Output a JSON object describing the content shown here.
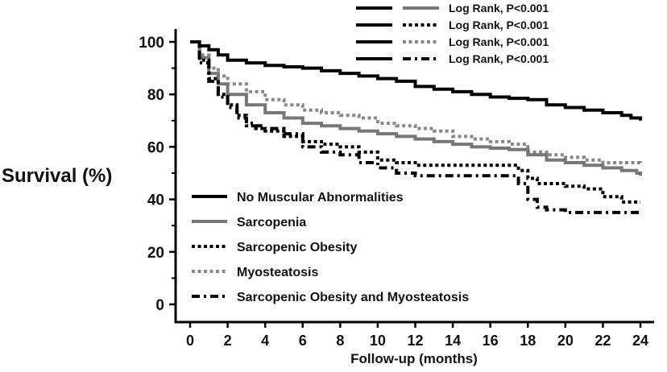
{
  "chart_data": {
    "type": "line",
    "subtype": "kaplan-meier",
    "title": "",
    "xlabel": "Follow-up (months)",
    "ylabel": "Survival (%)",
    "xlim": [
      0,
      24
    ],
    "ylim": [
      0,
      100
    ],
    "xticks": [
      0,
      2,
      4,
      6,
      8,
      10,
      12,
      14,
      16,
      18,
      20,
      22,
      24
    ],
    "yticks": [
      0,
      20,
      40,
      60,
      80,
      100
    ],
    "grid": false,
    "legend_position": "bottom-left",
    "series": [
      {
        "name": "No Muscular Abnormalities",
        "color": "#000000",
        "style": "solid",
        "x": [
          0,
          0.5,
          1,
          1.5,
          2,
          3,
          4,
          5,
          6,
          7,
          8,
          9,
          10,
          11,
          12,
          13,
          14,
          15,
          16,
          17,
          18,
          19,
          20,
          21,
          22,
          23,
          23.5,
          24
        ],
        "y": [
          100,
          98.5,
          97,
          95,
          93,
          92,
          91,
          90.5,
          90,
          89,
          88,
          87,
          86,
          85,
          83,
          82,
          81,
          80,
          79,
          78.5,
          78,
          76,
          75,
          74,
          73,
          72,
          71,
          70
        ]
      },
      {
        "name": "Sarcopenia",
        "color": "#777777",
        "style": "solid",
        "x": [
          0,
          0.5,
          1,
          1.5,
          2,
          3,
          4,
          5,
          6,
          7,
          8,
          9,
          10,
          11,
          12,
          13,
          14,
          15,
          16,
          17,
          18,
          19,
          20,
          21,
          22,
          23,
          23.8,
          24
        ],
        "y": [
          100,
          94,
          88,
          84,
          80,
          76,
          73,
          71,
          69,
          68,
          67,
          66,
          65,
          64,
          63,
          62,
          61,
          60,
          59.5,
          59,
          57,
          55,
          54,
          53,
          52,
          51,
          50,
          49
        ]
      },
      {
        "name": "Sarcopenic Obesity",
        "color": "#000000",
        "style": "dotted",
        "x": [
          0,
          0.5,
          1,
          1.5,
          2,
          2.5,
          3,
          3.5,
          4,
          5,
          6,
          7,
          8,
          9,
          10,
          11,
          12,
          13,
          14,
          15,
          16,
          17,
          17.5,
          18,
          18.5,
          19,
          20,
          21,
          22,
          23,
          24
        ],
        "y": [
          100,
          93,
          86,
          80,
          76,
          72,
          68,
          67,
          66,
          64,
          62,
          61,
          60,
          58,
          55,
          54,
          53,
          53,
          53,
          53,
          53,
          53,
          51,
          48,
          46,
          46,
          45,
          44,
          41,
          39,
          39
        ]
      },
      {
        "name": "Myosteatosis",
        "color": "#888888",
        "style": "dotted",
        "x": [
          0,
          0.5,
          1,
          1.5,
          2,
          3,
          4,
          5,
          6,
          7,
          8,
          9,
          10,
          11,
          12,
          13,
          14,
          15,
          16,
          17,
          18,
          19,
          20,
          21,
          22,
          23,
          24
        ],
        "y": [
          100,
          95,
          90,
          87,
          84,
          81,
          78,
          76,
          74,
          73,
          72,
          71,
          69,
          68,
          67,
          66,
          64,
          63,
          62,
          61,
          58,
          57,
          56,
          55,
          54,
          54,
          53
        ]
      },
      {
        "name": "Sarcopenic Obesity and Myosteatosis",
        "color": "#000000",
        "style": "dash-dot",
        "x": [
          0,
          0.5,
          1,
          1.5,
          2,
          2.5,
          3,
          3.5,
          4,
          5,
          6,
          7,
          8,
          9,
          10,
          11,
          12,
          13,
          14,
          15,
          16,
          17,
          17.5,
          18,
          18.5,
          19,
          20,
          21,
          22,
          23,
          24
        ],
        "y": [
          100,
          92,
          85,
          79,
          75,
          71,
          69,
          68,
          67,
          65,
          60,
          58,
          57,
          54,
          52,
          50,
          49,
          49,
          49,
          49,
          49,
          49,
          46,
          40,
          37,
          36,
          35,
          35,
          35,
          35,
          35
        ]
      }
    ],
    "comparisons": [
      {
        "reference": "No Muscular Abnormalities",
        "versus": "Sarcopenia",
        "label": "Log Rank, P<0.001"
      },
      {
        "reference": "No Muscular Abnormalities",
        "versus": "Sarcopenic Obesity",
        "label": "Log Rank, P<0.001"
      },
      {
        "reference": "No Muscular Abnormalities",
        "versus": "Myosteatosis",
        "label": "Log Rank, P<0.001"
      },
      {
        "reference": "No Muscular Abnormalities",
        "versus": "Sarcopenic Obesity and Myosteatosis",
        "label": "Log Rank, P<0.001"
      }
    ]
  }
}
